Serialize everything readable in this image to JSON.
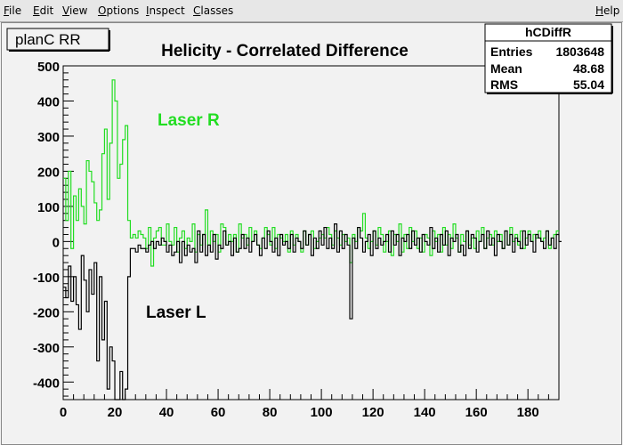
{
  "menu": {
    "items": [
      {
        "label": "File",
        "mnemonic": "F",
        "rest": "ile"
      },
      {
        "label": "Edit",
        "mnemonic": "E",
        "rest": "dit"
      },
      {
        "label": "View",
        "mnemonic": "V",
        "rest": "iew"
      },
      {
        "label": "Options",
        "mnemonic": "O",
        "rest": "ptions"
      },
      {
        "label": "Inspect",
        "mnemonic": "I",
        "rest": "nspect"
      },
      {
        "label": "Classes",
        "mnemonic": "C",
        "rest": "lasses"
      }
    ],
    "help": {
      "label": "Help",
      "mnemonic": "H",
      "rest": "elp"
    }
  },
  "pad_label": "planC RR",
  "stats": {
    "name": "hCDiffR",
    "rows": [
      {
        "key": "Entries",
        "value": "1803648"
      },
      {
        "key": "Mean",
        "value": "48.68"
      },
      {
        "key": "RMS",
        "value": "55.04"
      }
    ]
  },
  "chart_data": {
    "type": "line",
    "title": "Helicity - Correlated  Difference",
    "xlim": [
      0,
      192
    ],
    "ylim": [
      -450,
      500
    ],
    "xticks": [
      0,
      20,
      40,
      60,
      80,
      100,
      120,
      140,
      160,
      180
    ],
    "yticks": [
      -400,
      -300,
      -200,
      -100,
      0,
      100,
      200,
      300,
      400,
      500
    ],
    "annotations": [
      {
        "text": "Laser R",
        "color": "#22dd22"
      },
      {
        "text": "Laser  L",
        "color": "#000000"
      }
    ],
    "series": [
      {
        "name": "Laser R",
        "color": "#22dd22",
        "step": true,
        "x_start": 0,
        "bin_width": 1,
        "values": [
          180,
          60,
          200,
          -20,
          130,
          60,
          150,
          100,
          50,
          230,
          200,
          170,
          110,
          60,
          90,
          250,
          320,
          120,
          280,
          460,
          400,
          180,
          220,
          290,
          330,
          60,
          10,
          20,
          10,
          30,
          20,
          10,
          -20,
          40,
          -70,
          10,
          30,
          40,
          -10,
          -10,
          50,
          0,
          -10,
          40,
          -30,
          10,
          30,
          -20,
          10,
          0,
          50,
          -30,
          20,
          -10,
          20,
          90,
          -10,
          30,
          0,
          20,
          -30,
          50,
          40,
          -10,
          20,
          0,
          20,
          -30,
          50,
          10,
          20,
          -10,
          40,
          0,
          30,
          -10,
          -20,
          10,
          40,
          20,
          -10,
          40,
          -20,
          20,
          10,
          0,
          20,
          -30,
          30,
          -10,
          20,
          0,
          -30,
          30,
          -10,
          20,
          30,
          -20,
          0,
          10,
          20,
          10,
          40,
          20,
          -10,
          30,
          10,
          -10,
          20,
          0,
          10,
          -60,
          20,
          0,
          40,
          30,
          80,
          10,
          -20,
          0,
          30,
          -10,
          40,
          20,
          -30,
          0,
          30,
          -40,
          20,
          0,
          50,
          -30,
          20,
          -20,
          40,
          0,
          30,
          -20,
          10,
          -30,
          20,
          10,
          -40,
          30,
          0,
          20,
          -30,
          40,
          -10,
          20,
          -20,
          50,
          10,
          -30,
          20,
          0,
          30,
          -10,
          10,
          -20,
          30,
          0,
          40,
          -20,
          10,
          20,
          -10,
          30,
          0,
          20,
          -20,
          30,
          -10,
          40,
          0,
          20,
          -10,
          30,
          -20,
          10,
          30,
          0,
          20,
          10,
          30,
          0,
          10,
          30,
          -20,
          10,
          20,
          30
        ]
      },
      {
        "name": "Laser  L",
        "color": "#000000",
        "step": true,
        "x_start": 0,
        "bin_width": 1,
        "values": [
          -130,
          -160,
          -70,
          -170,
          -100,
          -180,
          -250,
          -40,
          -110,
          -200,
          -80,
          -150,
          -60,
          -340,
          -100,
          -280,
          -170,
          -420,
          -300,
          -340,
          -450,
          -450,
          -370,
          -450,
          -420,
          -100,
          -20,
          -20,
          -30,
          -10,
          -20,
          -20,
          -30,
          -10,
          0,
          -20,
          0,
          -10,
          10,
          0,
          -30,
          -10,
          -40,
          -30,
          0,
          -60,
          0,
          -40,
          -10,
          -30,
          -20,
          -60,
          30,
          -30,
          20,
          -40,
          -10,
          -30,
          20,
          -50,
          -10,
          -20,
          30,
          -10,
          0,
          -40,
          10,
          -30,
          -20,
          20,
          -20,
          10,
          -30,
          0,
          20,
          -10,
          -40,
          10,
          -20,
          30,
          0,
          -30,
          10,
          -40,
          20,
          -10,
          0,
          -20,
          20,
          -30,
          10,
          0,
          -20,
          30,
          -10,
          20,
          -40,
          10,
          -20,
          30,
          -10,
          40,
          -20,
          10,
          -20,
          50,
          -30,
          30,
          -20,
          20,
          -10,
          -220,
          10,
          -20,
          40,
          10,
          -30,
          0,
          20,
          -40,
          30,
          -20,
          10,
          -10,
          0,
          20,
          -30,
          30,
          -10,
          20,
          -40,
          10,
          0,
          20,
          -20,
          30,
          -10,
          10,
          -30,
          20,
          0,
          -10,
          40,
          -20,
          10,
          -30,
          20,
          -10,
          30,
          -40,
          10,
          0,
          20,
          -30,
          -10,
          -40,
          30,
          -20,
          20,
          10,
          -30,
          0,
          20,
          -20,
          30,
          -10,
          10,
          -40,
          20,
          0,
          -20,
          30,
          -10,
          20,
          -30,
          10,
          0,
          -20,
          30,
          -10,
          20,
          0,
          -30,
          20,
          10,
          0,
          -20,
          30,
          -10,
          10,
          -20,
          20,
          0
        ]
      }
    ]
  }
}
